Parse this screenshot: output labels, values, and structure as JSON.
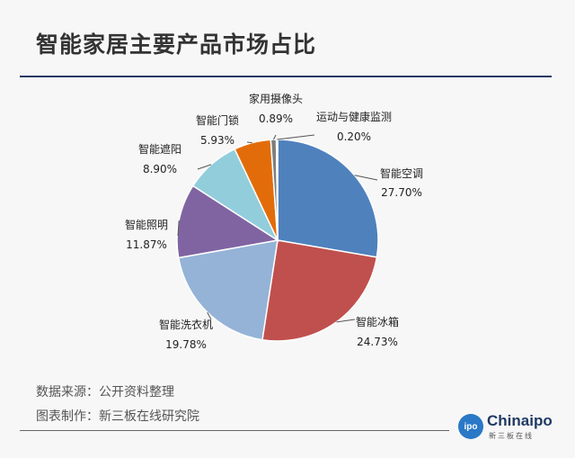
{
  "chart_data": {
    "type": "pie",
    "title": "智能家居主要产品市场占比",
    "slices": [
      {
        "label": "智能空调",
        "value": 27.7,
        "value_label": "27.70%",
        "color": "#4f81bd"
      },
      {
        "label": "智能冰箱",
        "value": 24.73,
        "value_label": "24.73%",
        "color": "#c0504d"
      },
      {
        "label": "智能洗衣机",
        "value": 19.78,
        "value_label": "19.78%",
        "color": "#95b3d7"
      },
      {
        "label": "智能照明",
        "value": 11.87,
        "value_label": "11.87%",
        "color": "#8064a2"
      },
      {
        "label": "智能遮阳",
        "value": 8.9,
        "value_label": "8.90%",
        "color": "#92cddc"
      },
      {
        "label": "智能门锁",
        "value": 5.93,
        "value_label": "5.93%",
        "color": "#e36c0a"
      },
      {
        "label": "家用摄像头",
        "value": 0.89,
        "value_label": "0.89%",
        "color": "#7f7f7f"
      },
      {
        "label": "运动与健康监测",
        "value": 0.2,
        "value_label": "0.20%",
        "color": "#4bacc6"
      }
    ]
  },
  "footer": {
    "source": "数据来源：公开资料整理",
    "maker": "图表制作：新三板在线研究院"
  },
  "logo": {
    "badge": "ipo",
    "word": "Chinaipo",
    "sub": "新三板在线"
  }
}
